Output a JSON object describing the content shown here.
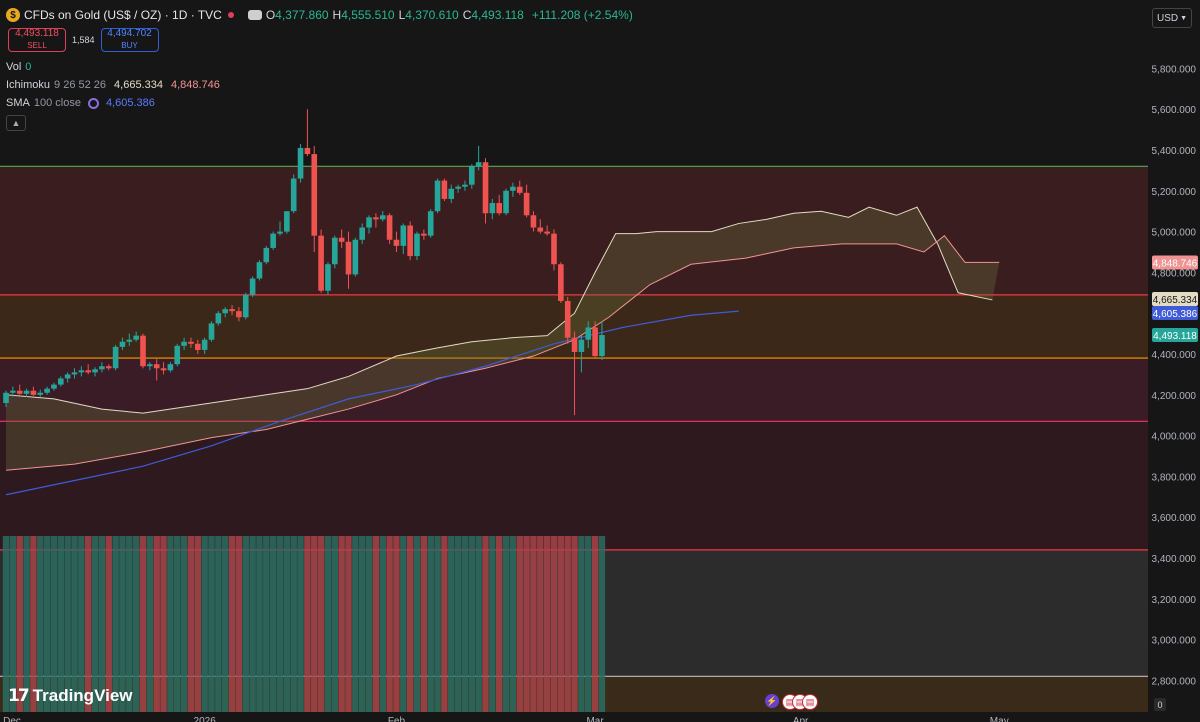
{
  "header": {
    "symbol_icon": "$",
    "title": "CFDs on Gold (US$ / OZ) · 1D · TVC",
    "ohlc": [
      {
        "k": "O",
        "v": "4,377.860"
      },
      {
        "k": "H",
        "v": "4,555.510"
      },
      {
        "k": "L",
        "v": "4,370.610"
      },
      {
        "k": "C",
        "v": "4,493.118"
      }
    ],
    "change": "+111.208 (+2.54%)"
  },
  "trade": {
    "sell_price": "4,493.118",
    "sell_label": "SELL",
    "spread": "1,584",
    "buy_price": "4,494.702",
    "buy_label": "BUY"
  },
  "indicators": {
    "vol_label": "Vol",
    "vol_value": "0",
    "ichimoku_label": "Ichimoku",
    "ichimoku_params": "9 26 52 26",
    "ichimoku_v1": "4,665.334",
    "ichimoku_v2": "4,848.746",
    "sma_label": "SMA",
    "sma_params": "100 close",
    "sma_value": "4,605.386",
    "collapse_icon": "chevron-up-icon"
  },
  "currency_button": "USD",
  "branding": "TradingView",
  "bottom_zero": "0",
  "colors": {
    "bg": "#161616",
    "up": "#26a69a",
    "down": "#ef5350",
    "sma": "#3f5bd8",
    "cloud_line_a": "#e2dcc4",
    "cloud_line_b": "#f19393",
    "line_green": "#4caf50",
    "line_red": "#f23645",
    "line_orange": "#ff9800",
    "line_pink": "#ff2f6a"
  },
  "chart_data": {
    "type": "candlestick",
    "y_axis": {
      "min": 2700,
      "max": 6000,
      "ticks": [
        "2,800.000",
        "3,000.000",
        "3,200.000",
        "3,400.000",
        "3,600.000",
        "3,800.000",
        "4,000.000",
        "4,200.000",
        "4,400.000",
        "4,600.000",
        "4,800.000",
        "5,000.000",
        "5,200.000",
        "5,400.000",
        "5,600.000",
        "5,800.000"
      ],
      "tick_values": [
        2800,
        3000,
        3200,
        3400,
        3600,
        3800,
        4000,
        4200,
        4400,
        4600,
        4800,
        5000,
        5200,
        5400,
        5600,
        5800
      ]
    },
    "x_axis": {
      "ticks": [
        "Dec",
        "2026",
        "Feb",
        "Mar",
        "Apr",
        "May"
      ],
      "tick_index": [
        0,
        29,
        57,
        86,
        116,
        145
      ]
    },
    "price_tags": [
      {
        "label": "4,848.746",
        "value": 4848.746,
        "color": "#f19393"
      },
      {
        "label": "4,665.334",
        "value": 4665.334,
        "color": "#e2dcc4"
      },
      {
        "label": "4,605.386",
        "value": 4605.386,
        "color": "#3f5bd8"
      },
      {
        "label": "4,493.118",
        "value": 4493.118,
        "color": "#26a69a"
      }
    ],
    "horizontal_levels": [
      {
        "value": 5320,
        "color": "#4caf50"
      },
      {
        "value": 4690,
        "color": "#f23645"
      },
      {
        "value": 4380,
        "color": "#ff9800"
      },
      {
        "value": 4070,
        "color": "#ff2f6a"
      },
      {
        "value": 3440,
        "color": "#f23645"
      },
      {
        "value": 2820,
        "color": "#bdbdbd"
      }
    ],
    "candles": [
      [
        4160,
        4220,
        4140,
        4210
      ],
      [
        4210,
        4240,
        4190,
        4220
      ],
      [
        4220,
        4250,
        4200,
        4205
      ],
      [
        4205,
        4230,
        4190,
        4220
      ],
      [
        4220,
        4240,
        4195,
        4200
      ],
      [
        4200,
        4225,
        4190,
        4210
      ],
      [
        4210,
        4240,
        4200,
        4230
      ],
      [
        4230,
        4260,
        4220,
        4250
      ],
      [
        4250,
        4290,
        4240,
        4280
      ],
      [
        4280,
        4310,
        4260,
        4300
      ],
      [
        4300,
        4330,
        4280,
        4310
      ],
      [
        4310,
        4340,
        4290,
        4320
      ],
      [
        4320,
        4350,
        4300,
        4310
      ],
      [
        4310,
        4335,
        4290,
        4325
      ],
      [
        4325,
        4360,
        4310,
        4340
      ],
      [
        4340,
        4350,
        4320,
        4330
      ],
      [
        4330,
        4445,
        4320,
        4435
      ],
      [
        4435,
        4480,
        4420,
        4460
      ],
      [
        4460,
        4500,
        4440,
        4470
      ],
      [
        4470,
        4510,
        4460,
        4490
      ],
      [
        4490,
        4500,
        4330,
        4340
      ],
      [
        4340,
        4360,
        4320,
        4350
      ],
      [
        4350,
        4375,
        4270,
        4330
      ],
      [
        4330,
        4360,
        4300,
        4320
      ],
      [
        4320,
        4360,
        4310,
        4350
      ],
      [
        4350,
        4450,
        4340,
        4440
      ],
      [
        4440,
        4480,
        4420,
        4460
      ],
      [
        4460,
        4480,
        4430,
        4450
      ],
      [
        4450,
        4470,
        4400,
        4420
      ],
      [
        4420,
        4480,
        4400,
        4470
      ],
      [
        4470,
        4560,
        4460,
        4550
      ],
      [
        4550,
        4610,
        4540,
        4600
      ],
      [
        4600,
        4630,
        4580,
        4620
      ],
      [
        4620,
        4640,
        4590,
        4610
      ],
      [
        4610,
        4630,
        4560,
        4580
      ],
      [
        4580,
        4700,
        4570,
        4690
      ],
      [
        4690,
        4780,
        4680,
        4770
      ],
      [
        4770,
        4860,
        4760,
        4850
      ],
      [
        4850,
        4930,
        4840,
        4920
      ],
      [
        4920,
        5000,
        4910,
        4990
      ],
      [
        4990,
        5050,
        4980,
        5000
      ],
      [
        5000,
        5100,
        4990,
        5100
      ],
      [
        5100,
        5280,
        5090,
        5260
      ],
      [
        5260,
        5430,
        5240,
        5410
      ],
      [
        5410,
        5600,
        5370,
        5380
      ],
      [
        5380,
        5420,
        4900,
        4980
      ],
      [
        4980,
        5010,
        4700,
        4710
      ],
      [
        4710,
        4850,
        4690,
        4840
      ],
      [
        4840,
        4980,
        4820,
        4970
      ],
      [
        4970,
        5010,
        4920,
        4950
      ],
      [
        4950,
        5000,
        4720,
        4790
      ],
      [
        4790,
        4970,
        4780,
        4960
      ],
      [
        4960,
        5040,
        4940,
        5020
      ],
      [
        5020,
        5080,
        4990,
        5070
      ],
      [
        5070,
        5090,
        5020,
        5060
      ],
      [
        5060,
        5100,
        5050,
        5080
      ],
      [
        5080,
        5090,
        4940,
        4960
      ],
      [
        4960,
        5000,
        4900,
        4930
      ],
      [
        4930,
        5040,
        4890,
        5030
      ],
      [
        5030,
        5050,
        4860,
        4880
      ],
      [
        4880,
        5000,
        4860,
        4990
      ],
      [
        4990,
        5010,
        4960,
        4980
      ],
      [
        4980,
        5110,
        4970,
        5100
      ],
      [
        5100,
        5260,
        5090,
        5250
      ],
      [
        5250,
        5260,
        5150,
        5160
      ],
      [
        5160,
        5230,
        5140,
        5210
      ],
      [
        5210,
        5230,
        5190,
        5220
      ],
      [
        5220,
        5250,
        5200,
        5230
      ],
      [
        5230,
        5330,
        5210,
        5320
      ],
      [
        5320,
        5420,
        5300,
        5340
      ],
      [
        5340,
        5360,
        5040,
        5090
      ],
      [
        5090,
        5160,
        5060,
        5140
      ],
      [
        5140,
        5180,
        5080,
        5090
      ],
      [
        5090,
        5210,
        5080,
        5200
      ],
      [
        5200,
        5240,
        5170,
        5220
      ],
      [
        5220,
        5250,
        5180,
        5190
      ],
      [
        5190,
        5230,
        5070,
        5080
      ],
      [
        5080,
        5100,
        5000,
        5020
      ],
      [
        5020,
        5060,
        4990,
        5000
      ],
      [
        5000,
        5030,
        4980,
        4990
      ],
      [
        4990,
        5010,
        4810,
        4840
      ],
      [
        4840,
        4850,
        4650,
        4660
      ],
      [
        4660,
        4680,
        4450,
        4480
      ],
      [
        4480,
        4510,
        4100,
        4410
      ],
      [
        4410,
        4490,
        4310,
        4470
      ],
      [
        4470,
        4560,
        4430,
        4530
      ],
      [
        4530,
        4560,
        4380,
        4390
      ],
      [
        4390,
        4560,
        4370,
        4493
      ]
    ],
    "sma": [
      [
        0,
        3710
      ],
      [
        10,
        3780
      ],
      [
        20,
        3850
      ],
      [
        30,
        3950
      ],
      [
        40,
        4070
      ],
      [
        50,
        4180
      ],
      [
        60,
        4250
      ],
      [
        70,
        4340
      ],
      [
        80,
        4450
      ],
      [
        90,
        4530
      ],
      [
        100,
        4590
      ],
      [
        107,
        4610
      ]
    ],
    "cloud_a": [
      [
        0,
        4200
      ],
      [
        7,
        4180
      ],
      [
        14,
        4130
      ],
      [
        20,
        4110
      ],
      [
        26,
        4140
      ],
      [
        32,
        4170
      ],
      [
        38,
        4200
      ],
      [
        44,
        4230
      ],
      [
        50,
        4290
      ],
      [
        57,
        4390
      ],
      [
        63,
        4430
      ],
      [
        68,
        4460
      ],
      [
        74,
        4480
      ],
      [
        79,
        4490
      ],
      [
        83,
        4600
      ],
      [
        86,
        4800
      ],
      [
        89,
        4990
      ],
      [
        92,
        4990
      ],
      [
        95,
        5000
      ],
      [
        99,
        5000
      ],
      [
        103,
        5000
      ],
      [
        107,
        5040
      ],
      [
        111,
        5060
      ],
      [
        115,
        5090
      ],
      [
        119,
        5100
      ],
      [
        123,
        5070
      ],
      [
        126,
        5120
      ],
      [
        130,
        5080
      ],
      [
        133,
        5120
      ],
      [
        136,
        4940
      ],
      [
        139,
        4700
      ],
      [
        144,
        4665
      ]
    ],
    "cloud_b": [
      [
        0,
        3830
      ],
      [
        10,
        3860
      ],
      [
        20,
        3920
      ],
      [
        30,
        3990
      ],
      [
        38,
        4030
      ],
      [
        44,
        4080
      ],
      [
        50,
        4130
      ],
      [
        57,
        4200
      ],
      [
        63,
        4280
      ],
      [
        70,
        4330
      ],
      [
        77,
        4390
      ],
      [
        83,
        4470
      ],
      [
        88,
        4580
      ],
      [
        94,
        4740
      ],
      [
        100,
        4840
      ],
      [
        108,
        4870
      ],
      [
        115,
        4920
      ],
      [
        122,
        4940
      ],
      [
        130,
        4940
      ],
      [
        134,
        4900
      ],
      [
        137,
        4980
      ],
      [
        140,
        4849
      ],
      [
        145,
        4849
      ]
    ]
  }
}
